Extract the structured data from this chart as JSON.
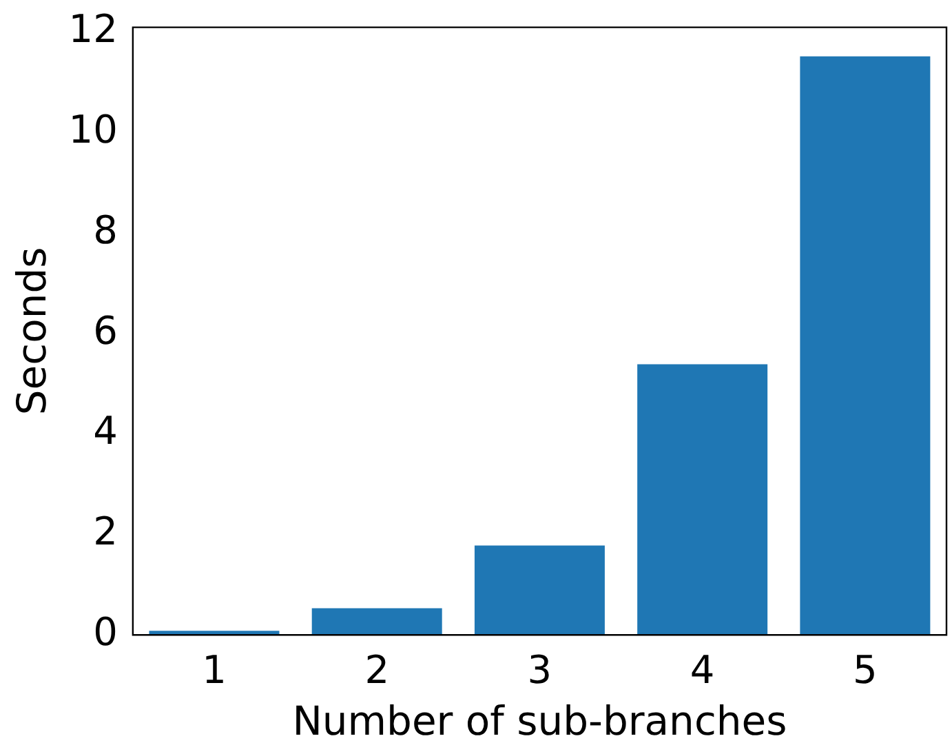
{
  "chart_data": {
    "type": "bar",
    "xlabel": "Number of sub-branches",
    "ylabel": "Seconds",
    "categories": [
      "1",
      "2",
      "3",
      "4",
      "5"
    ],
    "values": [
      0.08,
      0.53,
      1.78,
      5.39,
      11.52
    ],
    "color": "#1f77b4",
    "ylim": [
      0,
      12.1
    ],
    "yticks": [
      0,
      2,
      4,
      6,
      8,
      10,
      12
    ],
    "grid": false,
    "legend": false
  }
}
